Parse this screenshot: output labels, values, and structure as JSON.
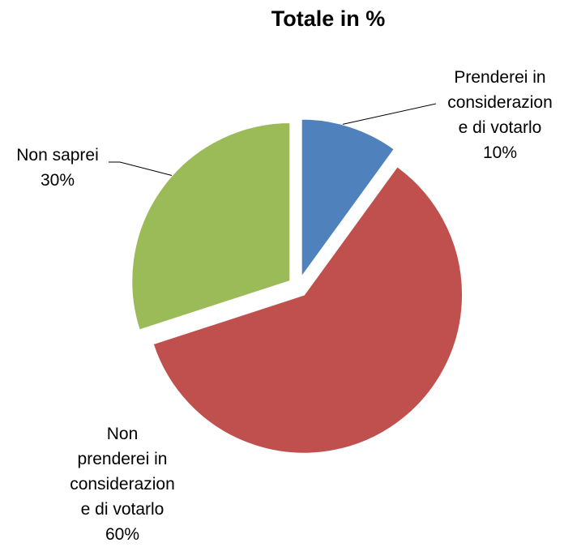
{
  "chart_data": {
    "type": "pie",
    "title": "Totale in %",
    "slices": [
      {
        "label": "Prenderei in considerazione di votarlo",
        "value": 10,
        "value_label": "10%",
        "color": "#4f81bd"
      },
      {
        "label": "Non prenderei in considerazione di votarlo",
        "value": 60,
        "value_label": "60%",
        "color": "#c0504d"
      },
      {
        "label": "Non saprei",
        "value": 30,
        "value_label": "30%",
        "color": "#9bbb59"
      }
    ],
    "label_lines": [
      [
        "Prenderei in",
        "considerazion",
        "e di votarlo",
        "10%"
      ],
      [
        "Non",
        "prenderei in",
        "considerazion",
        "e di votarlo",
        "60%"
      ],
      [
        "Non saprei",
        "30%"
      ]
    ],
    "exploded": true,
    "legend": "none"
  }
}
